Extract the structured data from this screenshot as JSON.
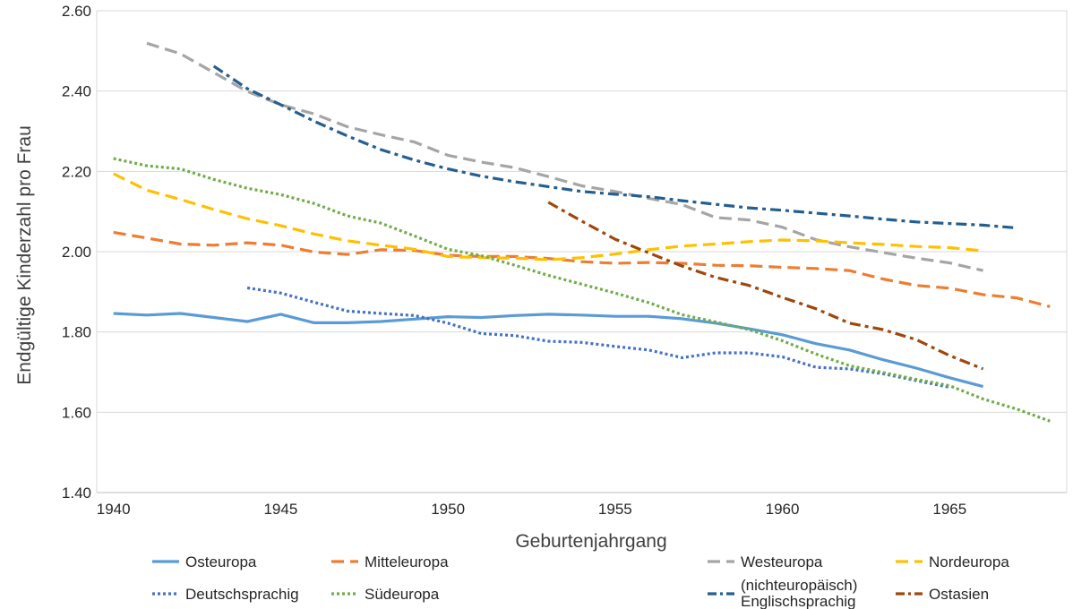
{
  "chart_data": {
    "type": "line",
    "title": "",
    "xlabel": "Geburtenjahrgang",
    "ylabel": "Endgültige Kinderzahl pro Frau",
    "xlim": [
      1939.5,
      1968.5
    ],
    "ylim": [
      1.4,
      2.6
    ],
    "xticks": [
      "1940",
      "1945",
      "1950",
      "1955",
      "1960",
      "1965"
    ],
    "xtick_values": [
      1940,
      1945,
      1950,
      1955,
      1960,
      1965
    ],
    "yticks": [
      "1.40",
      "1.60",
      "1.80",
      "2.00",
      "2.20",
      "2.40",
      "2.60"
    ],
    "ytick_values": [
      1.4,
      1.6,
      1.8,
      2.0,
      2.2,
      2.4,
      2.6
    ],
    "grid": "horizontal",
    "legend_position": "bottom",
    "series": [
      {
        "name": "Osteuropa",
        "color": "#5B9BD5",
        "style": "solid",
        "x": [
          1940,
          1941,
          1942,
          1943,
          1944,
          1945,
          1946,
          1947,
          1948,
          1949,
          1950,
          1951,
          1952,
          1953,
          1954,
          1955,
          1956,
          1957,
          1958,
          1959,
          1960,
          1961,
          1962,
          1963,
          1964,
          1965,
          1966
        ],
        "y": [
          1.846,
          1.842,
          1.846,
          1.836,
          1.826,
          1.844,
          1.823,
          1.823,
          1.826,
          1.832,
          1.838,
          1.836,
          1.841,
          1.844,
          1.842,
          1.839,
          1.839,
          1.833,
          1.822,
          1.808,
          1.793,
          1.771,
          1.755,
          1.731,
          1.71,
          1.686,
          1.664
        ]
      },
      {
        "name": "Mitteleuropa",
        "color": "#ED7D31",
        "style": "dashed",
        "x": [
          1940,
          1941,
          1942,
          1943,
          1944,
          1945,
          1946,
          1947,
          1948,
          1949,
          1950,
          1951,
          1952,
          1953,
          1954,
          1955,
          1956,
          1957,
          1958,
          1959,
          1960,
          1961,
          1962,
          1963,
          1964,
          1965,
          1966,
          1967,
          1968
        ],
        "y": [
          2.048,
          2.034,
          2.019,
          2.016,
          2.022,
          2.016,
          1.999,
          1.993,
          2.005,
          2.003,
          1.991,
          1.988,
          1.988,
          1.983,
          1.975,
          1.971,
          1.973,
          1.971,
          1.966,
          1.965,
          1.961,
          1.958,
          1.953,
          1.932,
          1.916,
          1.909,
          1.893,
          1.885,
          1.863
        ]
      },
      {
        "name": "Westeuropa",
        "color": "#A5A5A5",
        "style": "dashed",
        "x": [
          1941,
          1942,
          1943,
          1944,
          1945,
          1946,
          1947,
          1948,
          1949,
          1950,
          1951,
          1952,
          1953,
          1954,
          1955,
          1956,
          1957,
          1958,
          1959,
          1960,
          1961,
          1962,
          1963,
          1964,
          1965,
          1966
        ],
        "y": [
          2.519,
          2.493,
          2.446,
          2.399,
          2.366,
          2.343,
          2.311,
          2.291,
          2.273,
          2.24,
          2.223,
          2.209,
          2.187,
          2.164,
          2.15,
          2.133,
          2.117,
          2.085,
          2.079,
          2.061,
          2.03,
          2.012,
          1.998,
          1.984,
          1.972,
          1.953
        ]
      },
      {
        "name": "Nordeuropa",
        "color": "#FFC000",
        "style": "dashed",
        "x": [
          1940,
          1941,
          1942,
          1943,
          1944,
          1945,
          1946,
          1947,
          1948,
          1949,
          1950,
          1951,
          1952,
          1953,
          1954,
          1955,
          1956,
          1957,
          1958,
          1959,
          1960,
          1961,
          1962,
          1963,
          1964,
          1965,
          1966
        ],
        "y": [
          2.194,
          2.153,
          2.13,
          2.105,
          2.082,
          2.065,
          2.044,
          2.027,
          2.016,
          2.006,
          1.988,
          1.985,
          1.984,
          1.98,
          1.985,
          1.994,
          2.005,
          2.014,
          2.019,
          2.025,
          2.029,
          2.027,
          2.022,
          2.018,
          2.013,
          2.01,
          2.002
        ]
      },
      {
        "name": "Deutschsprachig",
        "color": "#4472C4",
        "style": "dotted",
        "x": [
          1944,
          1945,
          1946,
          1947,
          1948,
          1949,
          1950,
          1951,
          1952,
          1953,
          1954,
          1955,
          1956,
          1957,
          1958,
          1959,
          1960,
          1961,
          1962,
          1963,
          1964,
          1965
        ],
        "y": [
          1.91,
          1.897,
          1.874,
          1.852,
          1.846,
          1.841,
          1.822,
          1.796,
          1.791,
          1.777,
          1.774,
          1.764,
          1.755,
          1.736,
          1.748,
          1.748,
          1.738,
          1.712,
          1.708,
          1.696,
          1.679,
          1.662
        ]
      },
      {
        "name": "Südeuropa",
        "color": "#70AD47",
        "style": "dotted",
        "x": [
          1940,
          1941,
          1942,
          1943,
          1944,
          1945,
          1946,
          1947,
          1948,
          1949,
          1950,
          1951,
          1952,
          1953,
          1954,
          1955,
          1956,
          1957,
          1958,
          1959,
          1960,
          1961,
          1962,
          1963,
          1964,
          1965,
          1966,
          1967,
          1968
        ],
        "y": [
          2.232,
          2.214,
          2.206,
          2.18,
          2.158,
          2.142,
          2.12,
          2.089,
          2.071,
          2.039,
          2.006,
          1.99,
          1.966,
          1.941,
          1.919,
          1.897,
          1.873,
          1.843,
          1.825,
          1.806,
          1.778,
          1.745,
          1.716,
          1.699,
          1.682,
          1.666,
          1.633,
          1.608,
          1.578
        ]
      },
      {
        "name": "(nichteuropäisch) Englischsprachig",
        "color": "#255E91",
        "style": "dashdot",
        "x": [
          1943,
          1944,
          1945,
          1946,
          1947,
          1948,
          1949,
          1950,
          1951,
          1952,
          1953,
          1954,
          1955,
          1956,
          1957,
          1958,
          1959,
          1960,
          1961,
          1962,
          1963,
          1964,
          1965,
          1966,
          1967
        ],
        "y": [
          2.462,
          2.406,
          2.366,
          2.325,
          2.288,
          2.254,
          2.228,
          2.206,
          2.188,
          2.174,
          2.162,
          2.15,
          2.143,
          2.137,
          2.127,
          2.118,
          2.109,
          2.103,
          2.096,
          2.089,
          2.081,
          2.074,
          2.07,
          2.066,
          2.059
        ]
      },
      {
        "name": "Ostasien",
        "color": "#9E480E",
        "style": "dashdot",
        "x": [
          1953,
          1954,
          1955,
          1956,
          1957,
          1958,
          1959,
          1960,
          1961,
          1962,
          1963,
          1964,
          1965,
          1966
        ],
        "y": [
          2.123,
          2.076,
          2.031,
          1.997,
          1.964,
          1.936,
          1.916,
          1.886,
          1.858,
          1.822,
          1.806,
          1.781,
          1.741,
          1.708
        ]
      }
    ]
  }
}
